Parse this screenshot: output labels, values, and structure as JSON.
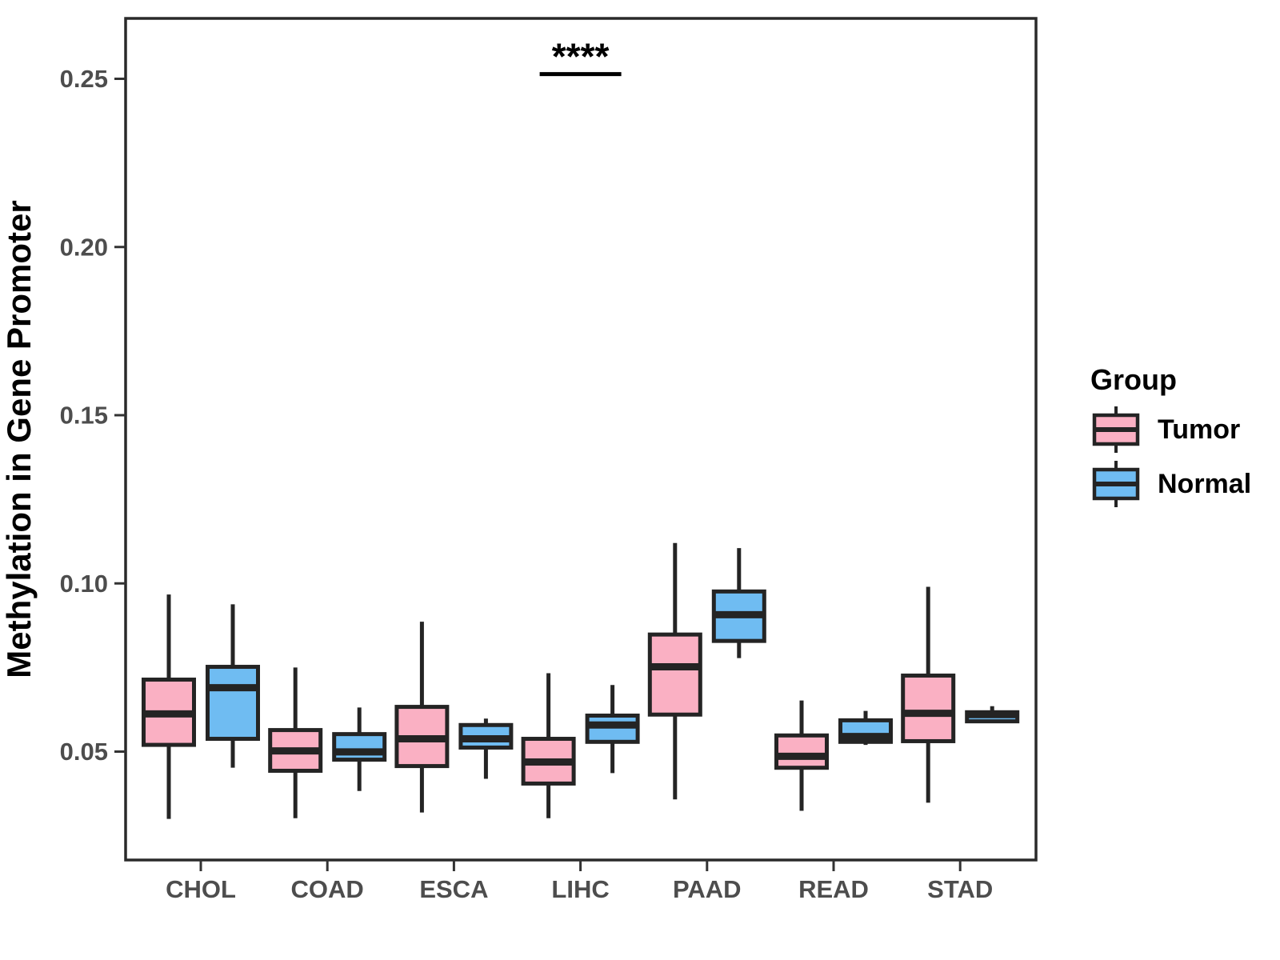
{
  "figure": {
    "y_axis": {
      "title": "Methylation in Gene Promoter",
      "tick_labels": [
        "0.05",
        "0.10",
        "0.15",
        "0.20",
        "0.25"
      ],
      "tick_values": [
        0.05,
        0.1,
        0.15,
        0.2,
        0.25
      ]
    },
    "x_axis": {
      "tick_labels": [
        "CHOL",
        "COAD",
        "ESCA",
        "LIHC",
        "PAAD",
        "READ",
        "STAD"
      ]
    },
    "legend": {
      "title": "Group",
      "entries": [
        {
          "label": "Tumor",
          "fill": "#FAB0C3"
        },
        {
          "label": "Normal",
          "fill": "#6FBCF2"
        }
      ]
    },
    "colors": {
      "box_stroke": "#242424",
      "panel_border": "#2a2a2a",
      "axis_text": "#4d4d4d",
      "tick_mark": "#333333",
      "annotation": "#000000",
      "background": "#ffffff"
    }
  },
  "chart_data": {
    "type": "boxplot",
    "title": "",
    "xlabel": "",
    "ylabel": "Methylation in Gene Promoter",
    "ylim": [
      0.018,
      0.268
    ],
    "yticks": [
      0.05,
      0.1,
      0.15,
      0.2,
      0.25
    ],
    "grid": false,
    "legend_position": "right",
    "categories": [
      "CHOL",
      "COAD",
      "ESCA",
      "LIHC",
      "PAAD",
      "READ",
      "STAD"
    ],
    "series": [
      {
        "name": "Tumor",
        "fill": "#FAB0C3",
        "boxes": [
          {
            "low": 0.03,
            "q1": 0.052,
            "median": 0.0612,
            "q3": 0.0714,
            "high": 0.0967
          },
          {
            "low": 0.0302,
            "q1": 0.0443,
            "median": 0.0502,
            "q3": 0.0564,
            "high": 0.075
          },
          {
            "low": 0.0319,
            "q1": 0.0457,
            "median": 0.0538,
            "q3": 0.0633,
            "high": 0.0886
          },
          {
            "low": 0.0302,
            "q1": 0.0405,
            "median": 0.0469,
            "q3": 0.0538,
            "high": 0.0733
          },
          {
            "low": 0.0358,
            "q1": 0.061,
            "median": 0.0752,
            "q3": 0.0848,
            "high": 0.112
          },
          {
            "low": 0.0324,
            "q1": 0.0452,
            "median": 0.0486,
            "q3": 0.0548,
            "high": 0.0652
          },
          {
            "low": 0.0348,
            "q1": 0.0531,
            "median": 0.0614,
            "q3": 0.0726,
            "high": 0.099
          }
        ]
      },
      {
        "name": "Normal",
        "fill": "#6FBCF2",
        "boxes": [
          {
            "low": 0.0452,
            "q1": 0.0538,
            "median": 0.069,
            "q3": 0.0752,
            "high": 0.0938
          },
          {
            "low": 0.0383,
            "q1": 0.0476,
            "median": 0.0499,
            "q3": 0.0552,
            "high": 0.0631
          },
          {
            "low": 0.0419,
            "q1": 0.0512,
            "median": 0.0538,
            "q3": 0.0579,
            "high": 0.0598
          },
          {
            "low": 0.0436,
            "q1": 0.0529,
            "median": 0.0579,
            "q3": 0.0607,
            "high": 0.0698
          },
          {
            "low": 0.0778,
            "q1": 0.0829,
            "median": 0.0907,
            "q3": 0.0976,
            "high": 0.1105
          },
          {
            "low": 0.052,
            "q1": 0.0529,
            "median": 0.0545,
            "q3": 0.0593,
            "high": 0.0621
          },
          {
            "low": 0.0585,
            "q1": 0.059,
            "median": 0.061,
            "q3": 0.0617,
            "high": 0.0635
          }
        ]
      }
    ],
    "significance": {
      "text": "****",
      "category": "LIHC",
      "bar_value": 0.2514
    }
  }
}
